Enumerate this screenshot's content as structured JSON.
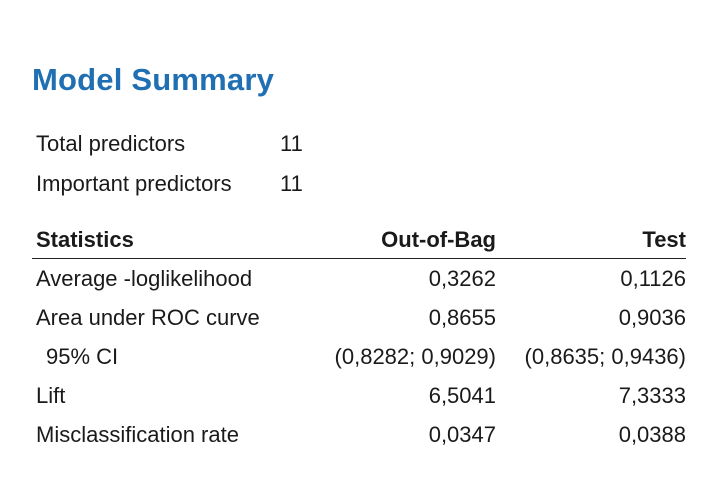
{
  "title": "Model Summary",
  "summary": {
    "rows": [
      {
        "label": "Total predictors",
        "value": "11"
      },
      {
        "label": "Important predictors",
        "value": "11"
      }
    ]
  },
  "stats": {
    "headers": [
      "Statistics",
      "Out-of-Bag",
      "Test"
    ],
    "rows": [
      {
        "label": "Average -loglikelihood",
        "oob": "0,3262",
        "test": "0,1126"
      },
      {
        "label": "Area under ROC curve",
        "oob": "0,8655",
        "test": "0,9036"
      },
      {
        "label": "95% CI",
        "oob": "(0,8282; 0,9029)",
        "test": "(0,8635; 0,9436)"
      },
      {
        "label": "Lift",
        "oob": "6,5041",
        "test": "7,3333"
      },
      {
        "label": "Misclassification rate",
        "oob": "0,0347",
        "test": "0,0388"
      }
    ]
  },
  "colors": {
    "title": "#1f6fb2",
    "text": "#1a1a1a"
  }
}
